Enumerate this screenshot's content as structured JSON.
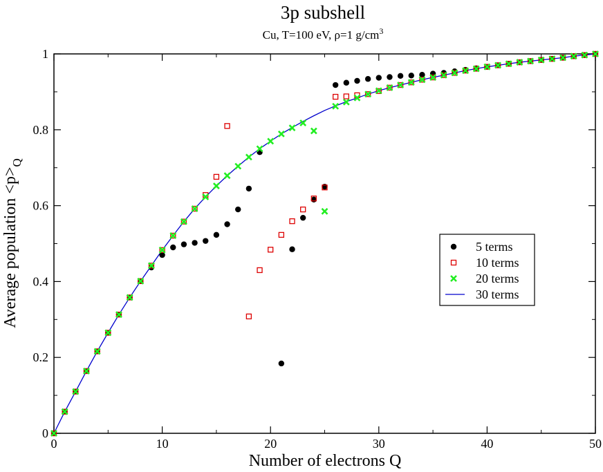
{
  "chart_data": {
    "type": "scatter",
    "title": "3p subshell",
    "subtitle": {
      "main": "Cu, T=100 eV, ρ=1 g/cm",
      "sup": "3"
    },
    "xlabel": "Number of electrons Q",
    "ylabel": {
      "main": "Average population <p>",
      "sub": "Q"
    },
    "xlim": [
      0,
      50
    ],
    "ylim": [
      0,
      1
    ],
    "xticks": [
      0,
      10,
      20,
      30,
      40,
      50
    ],
    "yticks": [
      0,
      0.2,
      0.4,
      0.6,
      0.8,
      1
    ],
    "xtick_labels": [
      "0",
      "10",
      "20",
      "30",
      "40",
      "50"
    ],
    "ytick_labels": [
      "0",
      "0.2",
      "0.4",
      "0.6",
      "0.8",
      "1"
    ],
    "grid": false,
    "legend_position": "right-middle",
    "series": [
      {
        "name": "5 terms",
        "marker": "filled-circle",
        "color": "#000000",
        "points": [
          [
            0,
            0
          ],
          [
            1,
            0.057
          ],
          [
            2,
            0.11
          ],
          [
            3,
            0.164
          ],
          [
            4,
            0.216
          ],
          [
            5,
            0.265
          ],
          [
            6,
            0.313
          ],
          [
            7,
            0.358
          ],
          [
            8,
            0.401
          ],
          [
            9,
            0.437
          ],
          [
            10,
            0.47
          ],
          [
            11,
            0.49
          ],
          [
            12,
            0.498
          ],
          [
            13,
            0.502
          ],
          [
            14,
            0.507
          ],
          [
            15,
            0.523
          ],
          [
            16,
            0.551
          ],
          [
            17,
            0.59
          ],
          [
            18,
            0.645
          ],
          [
            19,
            0.741
          ],
          [
            21,
            0.184
          ],
          [
            22,
            0.485
          ],
          [
            23,
            0.568
          ],
          [
            24,
            0.616
          ],
          [
            25,
            0.65
          ],
          [
            26,
            0.918
          ],
          [
            27,
            0.924
          ],
          [
            28,
            0.929
          ],
          [
            29,
            0.934
          ],
          [
            30,
            0.937
          ],
          [
            31,
            0.939
          ],
          [
            32,
            0.942
          ],
          [
            33,
            0.943
          ],
          [
            34,
            0.945
          ],
          [
            35,
            0.948
          ],
          [
            36,
            0.95
          ],
          [
            37,
            0.954
          ],
          [
            38,
            0.958
          ],
          [
            39,
            0.962
          ],
          [
            40,
            0.966
          ],
          [
            41,
            0.97
          ],
          [
            42,
            0.974
          ],
          [
            43,
            0.978
          ],
          [
            44,
            0.981
          ],
          [
            45,
            0.984
          ],
          [
            46,
            0.987
          ],
          [
            47,
            0.99
          ],
          [
            48,
            0.994
          ],
          [
            49,
            0.997
          ],
          [
            50,
            1.0
          ]
        ]
      },
      {
        "name": "10 terms",
        "marker": "open-square",
        "color": "#dd0000",
        "points": [
          [
            0,
            0
          ],
          [
            1,
            0.057
          ],
          [
            2,
            0.11
          ],
          [
            3,
            0.164
          ],
          [
            4,
            0.216
          ],
          [
            5,
            0.265
          ],
          [
            6,
            0.313
          ],
          [
            7,
            0.358
          ],
          [
            8,
            0.401
          ],
          [
            9,
            0.442
          ],
          [
            10,
            0.483
          ],
          [
            11,
            0.521
          ],
          [
            12,
            0.558
          ],
          [
            13,
            0.592
          ],
          [
            14,
            0.628
          ],
          [
            15,
            0.676
          ],
          [
            16,
            0.81
          ],
          [
            18,
            0.308
          ],
          [
            19,
            0.43
          ],
          [
            20,
            0.484
          ],
          [
            21,
            0.523
          ],
          [
            22,
            0.559
          ],
          [
            23,
            0.59
          ],
          [
            24,
            0.619
          ],
          [
            25,
            0.648
          ],
          [
            26,
            0.887
          ],
          [
            27,
            0.888
          ],
          [
            28,
            0.891
          ],
          [
            29,
            0.894
          ],
          [
            30,
            0.902
          ],
          [
            31,
            0.911
          ],
          [
            32,
            0.918
          ],
          [
            33,
            0.925
          ],
          [
            34,
            0.932
          ],
          [
            35,
            0.938
          ],
          [
            36,
            0.944
          ],
          [
            37,
            0.95
          ],
          [
            38,
            0.956
          ],
          [
            39,
            0.961
          ],
          [
            40,
            0.966
          ],
          [
            41,
            0.97
          ],
          [
            42,
            0.974
          ],
          [
            43,
            0.978
          ],
          [
            44,
            0.981
          ],
          [
            45,
            0.984
          ],
          [
            46,
            0.987
          ],
          [
            47,
            0.99
          ],
          [
            48,
            0.994
          ],
          [
            49,
            0.997
          ],
          [
            50,
            1.0
          ]
        ]
      },
      {
        "name": "20 terms",
        "marker": "x-cross",
        "color": "#22ee22",
        "points": [
          [
            0,
            0
          ],
          [
            1,
            0.057
          ],
          [
            2,
            0.11
          ],
          [
            3,
            0.164
          ],
          [
            4,
            0.216
          ],
          [
            5,
            0.265
          ],
          [
            6,
            0.313
          ],
          [
            7,
            0.358
          ],
          [
            8,
            0.401
          ],
          [
            9,
            0.442
          ],
          [
            10,
            0.483
          ],
          [
            11,
            0.521
          ],
          [
            12,
            0.558
          ],
          [
            13,
            0.592
          ],
          [
            14,
            0.623
          ],
          [
            15,
            0.652
          ],
          [
            16,
            0.679
          ],
          [
            17,
            0.704
          ],
          [
            18,
            0.728
          ],
          [
            19,
            0.75
          ],
          [
            20,
            0.77
          ],
          [
            21,
            0.789
          ],
          [
            22,
            0.805
          ],
          [
            23,
            0.818
          ],
          [
            24,
            0.797
          ],
          [
            25,
            0.585
          ],
          [
            26,
            0.862
          ],
          [
            27,
            0.873
          ],
          [
            28,
            0.884
          ],
          [
            29,
            0.894
          ],
          [
            30,
            0.903
          ],
          [
            31,
            0.911
          ],
          [
            32,
            0.918
          ],
          [
            33,
            0.925
          ],
          [
            34,
            0.932
          ],
          [
            35,
            0.938
          ],
          [
            36,
            0.944
          ],
          [
            37,
            0.95
          ],
          [
            38,
            0.956
          ],
          [
            39,
            0.961
          ],
          [
            40,
            0.966
          ],
          [
            41,
            0.97
          ],
          [
            42,
            0.974
          ],
          [
            43,
            0.978
          ],
          [
            44,
            0.981
          ],
          [
            45,
            0.984
          ],
          [
            46,
            0.987
          ],
          [
            47,
            0.99
          ],
          [
            48,
            0.994
          ],
          [
            49,
            0.997
          ],
          [
            50,
            1.0
          ]
        ]
      },
      {
        "name": "30 terms",
        "marker": "line",
        "color": "#0000cc",
        "points": [
          [
            0,
            0
          ],
          [
            1,
            0.057
          ],
          [
            2,
            0.11
          ],
          [
            3,
            0.164
          ],
          [
            4,
            0.216
          ],
          [
            5,
            0.265
          ],
          [
            6,
            0.313
          ],
          [
            7,
            0.358
          ],
          [
            8,
            0.401
          ],
          [
            9,
            0.442
          ],
          [
            10,
            0.483
          ],
          [
            11,
            0.521
          ],
          [
            12,
            0.558
          ],
          [
            13,
            0.592
          ],
          [
            14,
            0.623
          ],
          [
            15,
            0.652
          ],
          [
            16,
            0.679
          ],
          [
            17,
            0.704
          ],
          [
            18,
            0.728
          ],
          [
            19,
            0.75
          ],
          [
            20,
            0.77
          ],
          [
            21,
            0.789
          ],
          [
            22,
            0.806
          ],
          [
            23,
            0.822
          ],
          [
            24,
            0.837
          ],
          [
            25,
            0.851
          ],
          [
            26,
            0.863
          ],
          [
            27,
            0.874
          ],
          [
            28,
            0.884
          ],
          [
            29,
            0.894
          ],
          [
            30,
            0.903
          ],
          [
            31,
            0.911
          ],
          [
            32,
            0.918
          ],
          [
            33,
            0.925
          ],
          [
            34,
            0.932
          ],
          [
            35,
            0.938
          ],
          [
            36,
            0.944
          ],
          [
            37,
            0.95
          ],
          [
            38,
            0.956
          ],
          [
            39,
            0.961
          ],
          [
            40,
            0.966
          ],
          [
            41,
            0.97
          ],
          [
            42,
            0.974
          ],
          [
            43,
            0.978
          ],
          [
            44,
            0.981
          ],
          [
            45,
            0.984
          ],
          [
            46,
            0.987
          ],
          [
            47,
            0.99
          ],
          [
            48,
            0.994
          ],
          [
            49,
            0.997
          ],
          [
            50,
            1.0
          ]
        ]
      }
    ]
  }
}
